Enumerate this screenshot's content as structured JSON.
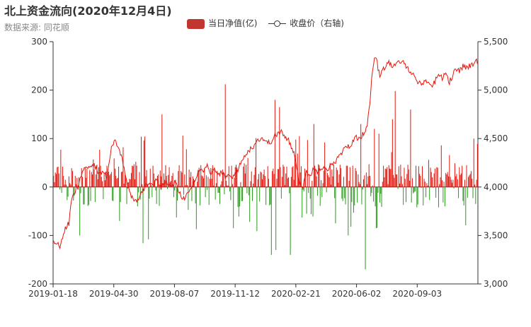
{
  "chart_data": {
    "type": "bar",
    "title": "北上资金流向(2020年12月4日)",
    "subtitle": "数据来源: 同花顺",
    "legend_placement": "top-center",
    "series": [
      {
        "name": "当日净值(亿)",
        "kind": "bar",
        "axis": "left",
        "color_positive": "#e3170d",
        "color_negative": "#2a9a1c",
        "legend_color": "#c23531"
      },
      {
        "name": "收盘价（右轴)",
        "kind": "line",
        "axis": "right",
        "color": "#e3170d"
      }
    ],
    "x_tick_labels": [
      "2019-01-18",
      "2019-04-30",
      "2019-08-07",
      "2019-11-12",
      "2020-02-21",
      "2020-06-02",
      "2020-09-03"
    ],
    "y_left": {
      "min": -200,
      "max": 300,
      "ticks": [
        -200,
        -100,
        0,
        100,
        200,
        300
      ]
    },
    "y_right": {
      "min": 3000,
      "max": 5500,
      "ticks": [
        "3,000",
        "3,500",
        "4,000",
        "4,500",
        "5,000",
        "5,500"
      ],
      "tick_values": [
        3000,
        3500,
        4000,
        4500,
        5000,
        5500
      ]
    },
    "close_keypoints": [
      [
        0,
        3450
      ],
      [
        3,
        3420
      ],
      [
        6,
        3380
      ],
      [
        8,
        3500
      ],
      [
        10,
        3580
      ],
      [
        13,
        3620
      ],
      [
        15,
        3850
      ],
      [
        18,
        3950
      ],
      [
        21,
        4000
      ],
      [
        24,
        4150
      ],
      [
        27,
        4220
      ],
      [
        30,
        4180
      ],
      [
        33,
        4230
      ],
      [
        36,
        4200
      ],
      [
        39,
        4120
      ],
      [
        42,
        4180
      ],
      [
        45,
        4100
      ],
      [
        48,
        4350
      ],
      [
        50,
        4450
      ],
      [
        52,
        4480
      ],
      [
        55,
        4420
      ],
      [
        58,
        4300
      ],
      [
        61,
        4100
      ],
      [
        64,
        3950
      ],
      [
        67,
        3870
      ],
      [
        70,
        3850
      ],
      [
        73,
        3900
      ],
      [
        76,
        3980
      ],
      [
        79,
        4020
      ],
      [
        82,
        4050
      ],
      [
        85,
        4030
      ],
      [
        88,
        4080
      ],
      [
        91,
        4000
      ],
      [
        94,
        4050
      ],
      [
        97,
        4020
      ],
      [
        100,
        4010
      ],
      [
        103,
        4050
      ],
      [
        106,
        3950
      ],
      [
        109,
        3880
      ],
      [
        112,
        3900
      ],
      [
        115,
        3980
      ],
      [
        118,
        4050
      ],
      [
        121,
        4110
      ],
      [
        124,
        4200
      ],
      [
        127,
        4180
      ],
      [
        130,
        4220
      ],
      [
        133,
        4150
      ],
      [
        136,
        4180
      ],
      [
        139,
        4120
      ],
      [
        142,
        4160
      ],
      [
        145,
        4100
      ],
      [
        148,
        4120
      ],
      [
        151,
        4080
      ],
      [
        154,
        4150
      ],
      [
        157,
        4200
      ],
      [
        160,
        4280
      ],
      [
        163,
        4350
      ],
      [
        166,
        4380
      ],
      [
        169,
        4420
      ],
      [
        172,
        4480
      ],
      [
        175,
        4500
      ],
      [
        178,
        4500
      ],
      [
        181,
        4450
      ],
      [
        184,
        4470
      ],
      [
        187,
        4520
      ],
      [
        190,
        4550
      ],
      [
        193,
        4580
      ],
      [
        196,
        4500
      ],
      [
        199,
        4480
      ],
      [
        202,
        4400
      ],
      [
        205,
        4300
      ],
      [
        208,
        4050
      ],
      [
        211,
        4000
      ],
      [
        214,
        4150
      ],
      [
        217,
        4120
      ],
      [
        220,
        4180
      ],
      [
        223,
        4160
      ],
      [
        226,
        4200
      ],
      [
        229,
        4220
      ],
      [
        232,
        4180
      ],
      [
        235,
        4230
      ],
      [
        238,
        4260
      ],
      [
        241,
        4300
      ],
      [
        244,
        4350
      ],
      [
        247,
        4400
      ],
      [
        250,
        4420
      ],
      [
        253,
        4450
      ],
      [
        256,
        4520
      ],
      [
        259,
        4500
      ],
      [
        262,
        4550
      ],
      [
        265,
        4600
      ],
      [
        268,
        4850
      ],
      [
        270,
        5200
      ],
      [
        272,
        5350
      ],
      [
        274,
        5280
      ],
      [
        276,
        5150
      ],
      [
        278,
        5200
      ],
      [
        281,
        5250
      ],
      [
        284,
        5300
      ],
      [
        287,
        5220
      ],
      [
        290,
        5260
      ],
      [
        293,
        5300
      ],
      [
        296,
        5280
      ],
      [
        299,
        5250
      ],
      [
        302,
        5200
      ],
      [
        305,
        5150
      ],
      [
        308,
        5100
      ],
      [
        311,
        5050
      ],
      [
        314,
        5100
      ],
      [
        317,
        5080
      ],
      [
        320,
        5050
      ],
      [
        323,
        5080
      ],
      [
        326,
        5180
      ],
      [
        329,
        5120
      ],
      [
        332,
        5200
      ],
      [
        335,
        5080
      ],
      [
        338,
        5150
      ],
      [
        341,
        5220
      ],
      [
        344,
        5200
      ],
      [
        347,
        5250
      ],
      [
        350,
        5230
      ],
      [
        353,
        5250
      ],
      [
        356,
        5280
      ],
      [
        359,
        5300
      ]
    ],
    "notable_flows": [
      [
        190,
        212
      ],
      [
        245,
        180
      ],
      [
        120,
        150
      ],
      [
        250,
        165
      ],
      [
        378,
        198
      ],
      [
        395,
        160
      ],
      [
        340,
        130
      ],
      [
        355,
        120
      ],
      [
        360,
        110
      ],
      [
        288,
        130
      ],
      [
        375,
        140
      ]
    ]
  }
}
